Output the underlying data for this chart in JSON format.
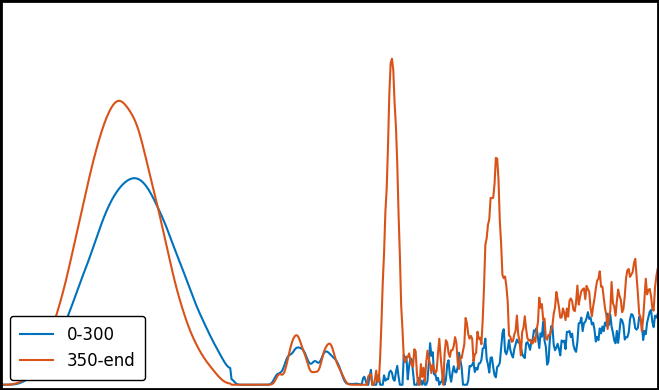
{
  "title": "",
  "xlabel": "",
  "ylabel": "",
  "line1_label": "0-300",
  "line2_label": "350-end",
  "line1_color": "#0072BD",
  "line2_color": "#D95319",
  "background_color": "#ffffff",
  "grid_color": "#b0b0b0",
  "legend_loc": "lower left",
  "seed1": 42,
  "seed2": 99,
  "n_points": 500
}
